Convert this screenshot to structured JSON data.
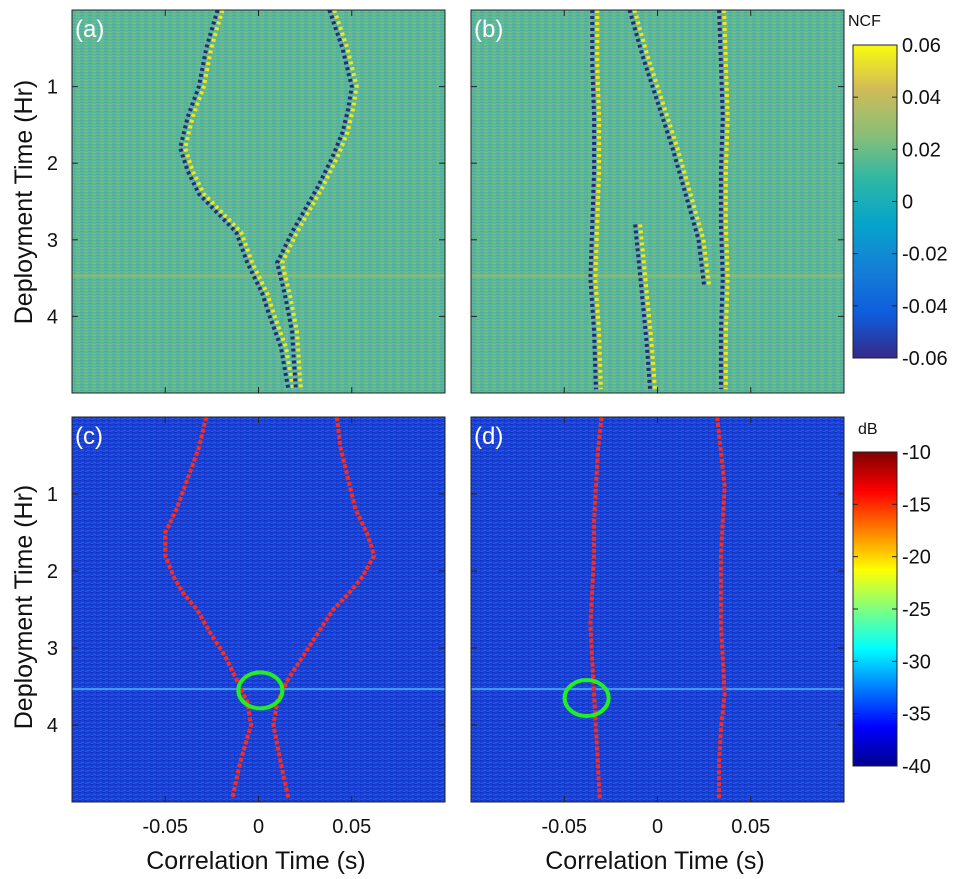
{
  "figure": {
    "colorbar_top": {
      "title": "NCF",
      "ticks": [
        "0.06",
        "0.04",
        "0.02",
        "0",
        "-0.02",
        "-0.04",
        "-0.06"
      ],
      "range": [
        -0.06,
        0.06
      ],
      "colormap": "parula"
    },
    "colorbar_bottom": {
      "title": "dB",
      "ticks": [
        "-10",
        "-15",
        "-20",
        "-25",
        "-30",
        "-35",
        "-40"
      ],
      "range": [
        -40,
        -10
      ],
      "colormap": "jet"
    },
    "ylabel": "Deployment Time (Hr)",
    "xlabel": "Correlation Time (s)",
    "xticks": [
      "-0.05",
      "0",
      "0.05"
    ],
    "yticks": [
      "1",
      "2",
      "3",
      "4"
    ]
  },
  "chart_data": [
    {
      "panel": "(a)",
      "type": "heatmap",
      "quantity": "NCF",
      "xlabel": "",
      "ylabel": "Deployment Time (Hr)",
      "xlim": [
        -0.1,
        0.1
      ],
      "ylim": [
        0,
        5
      ],
      "colormap": "parula",
      "traces": [
        {
          "x": [
            -0.022,
            -0.028,
            -0.032,
            -0.038,
            -0.042,
            -0.038,
            -0.032,
            -0.024,
            -0.012,
            -0.006,
            0.002,
            0.006,
            0.012,
            0.016
          ],
          "y": [
            0.0,
            0.5,
            1.0,
            1.4,
            1.8,
            2.1,
            2.4,
            2.6,
            2.9,
            3.3,
            3.7,
            4.0,
            4.4,
            4.95
          ]
        },
        {
          "x": [
            0.038,
            0.045,
            0.05,
            0.048,
            0.045,
            0.04,
            0.032,
            0.025,
            0.018,
            0.01,
            0.014,
            0.018,
            0.02
          ],
          "y": [
            0.0,
            0.5,
            1.0,
            1.3,
            1.6,
            1.9,
            2.3,
            2.6,
            2.9,
            3.3,
            3.7,
            4.2,
            4.95
          ]
        }
      ]
    },
    {
      "panel": "(b)",
      "type": "heatmap",
      "quantity": "NCF",
      "xlabel": "",
      "ylabel": "",
      "xlim": [
        -0.1,
        0.1
      ],
      "ylim": [
        0,
        5
      ],
      "colormap": "parula",
      "traces": [
        {
          "x": [
            -0.035,
            -0.035,
            -0.034,
            -0.034,
            -0.035,
            -0.036,
            -0.034,
            -0.033
          ],
          "y": [
            0.0,
            0.7,
            1.4,
            2.1,
            2.8,
            3.5,
            4.2,
            4.95
          ]
        },
        {
          "x": [
            0.033,
            0.034,
            0.035,
            0.034,
            0.034,
            0.035,
            0.034,
            0.034
          ],
          "y": [
            0.0,
            0.7,
            1.4,
            2.1,
            2.8,
            3.5,
            4.2,
            4.95
          ]
        },
        {
          "x": [
            -0.015,
            -0.008,
            0.0,
            0.008,
            0.015,
            0.022,
            0.025
          ],
          "y": [
            0.0,
            0.6,
            1.2,
            1.8,
            2.4,
            3.0,
            3.6
          ]
        },
        {
          "x": [
            -0.012,
            -0.01,
            -0.008,
            -0.006,
            -0.004
          ],
          "y": [
            2.8,
            3.3,
            3.8,
            4.3,
            4.95
          ]
        }
      ]
    },
    {
      "panel": "(c)",
      "type": "heatmap",
      "quantity": "dB",
      "xlabel": "Correlation Time (s)",
      "ylabel": "Deployment Time (Hr)",
      "xlim": [
        -0.1,
        0.1
      ],
      "ylim": [
        0,
        5
      ],
      "colormap": "jet",
      "picked_arrivals_left": {
        "x": [
          -0.028,
          -0.032,
          -0.038,
          -0.044,
          -0.05,
          -0.05,
          -0.045,
          -0.04,
          -0.033,
          -0.026,
          -0.018,
          -0.012,
          -0.006,
          -0.004,
          -0.01,
          -0.014
        ],
        "y": [
          0.0,
          0.4,
          0.8,
          1.2,
          1.5,
          1.8,
          2.1,
          2.3,
          2.5,
          2.8,
          3.1,
          3.4,
          3.7,
          4.0,
          4.5,
          4.95
        ]
      },
      "picked_arrivals_right": {
        "x": [
          0.042,
          0.044,
          0.048,
          0.052,
          0.058,
          0.062,
          0.055,
          0.048,
          0.04,
          0.032,
          0.024,
          0.016,
          0.01,
          0.008,
          0.012,
          0.016
        ],
        "y": [
          0.0,
          0.4,
          0.8,
          1.2,
          1.5,
          1.8,
          2.1,
          2.3,
          2.5,
          2.8,
          3.1,
          3.4,
          3.7,
          4.0,
          4.5,
          4.95
        ]
      },
      "highlight_circle": {
        "x": 0.001,
        "y": 3.55
      }
    },
    {
      "panel": "(d)",
      "type": "heatmap",
      "quantity": "dB",
      "xlabel": "Correlation Time (s)",
      "ylabel": "",
      "xlim": [
        -0.1,
        0.1
      ],
      "ylim": [
        0,
        5
      ],
      "colormap": "jet",
      "picked_arrivals_left": {
        "x": [
          -0.03,
          -0.032,
          -0.033,
          -0.034,
          -0.034,
          -0.035,
          -0.036,
          -0.035,
          -0.034,
          -0.033,
          -0.032,
          -0.031
        ],
        "y": [
          0.0,
          0.45,
          0.9,
          1.35,
          1.8,
          2.25,
          2.7,
          3.15,
          3.6,
          4.05,
          4.5,
          4.95
        ]
      },
      "picked_arrivals_right": {
        "x": [
          0.032,
          0.034,
          0.036,
          0.035,
          0.034,
          0.034,
          0.034,
          0.035,
          0.036,
          0.034,
          0.033,
          0.033
        ],
        "y": [
          0.0,
          0.45,
          0.9,
          1.35,
          1.8,
          2.25,
          2.7,
          3.15,
          3.6,
          4.05,
          4.5,
          4.95
        ]
      },
      "highlight_circle": {
        "x": -0.038,
        "y": 3.65
      }
    }
  ]
}
